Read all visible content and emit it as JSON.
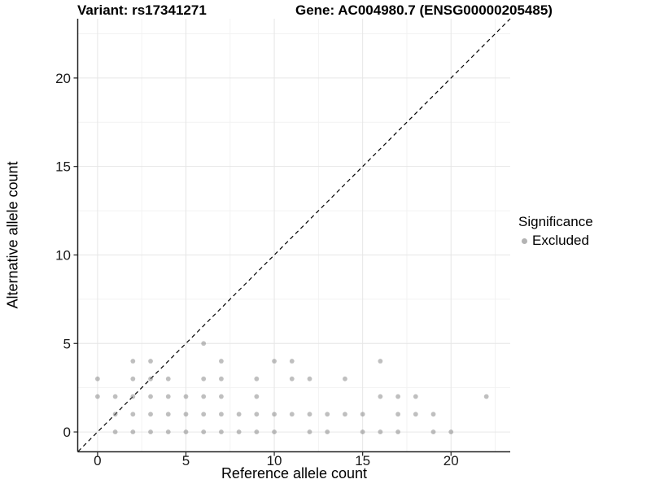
{
  "chart_data": {
    "type": "scatter",
    "titles": {
      "left": "Variant: rs17341271",
      "right": "Gene: AC004980.7 (ENSG00000205485)"
    },
    "xlabel": "Reference allele count",
    "ylabel": "Alternative allele count",
    "xlim": [
      -1.1,
      23.35
    ],
    "ylim": [
      -1.1,
      23.35
    ],
    "x_ticks": [
      0,
      5,
      10,
      15,
      20
    ],
    "y_ticks": [
      0,
      5,
      10,
      15,
      20
    ],
    "minor_ticks": [
      2.5,
      7.5,
      12.5,
      17.5,
      22.5
    ],
    "grid": true,
    "identity_line": {
      "style": "dashed",
      "from_corner": "bottom-left",
      "to_corner": "top-right",
      "color": "#000000"
    },
    "legend": {
      "position": "right",
      "title": "Significance",
      "entries": [
        {
          "label": "Excluded",
          "color": "#b3b3b3"
        }
      ]
    },
    "style": {
      "grid_major": "#e6e6e6",
      "grid_minor": "#f2f2f2",
      "axis_line": "#222222",
      "tick_color": "#1a1a1a",
      "tick_font_px": 17
    },
    "series": [
      {
        "name": "Excluded",
        "color": "#7f7f7f",
        "opacity": 0.5,
        "points": [
          [
            1,
            0
          ],
          [
            2,
            0
          ],
          [
            3,
            0
          ],
          [
            4,
            0
          ],
          [
            5,
            0
          ],
          [
            6,
            0
          ],
          [
            7,
            0
          ],
          [
            8,
            0
          ],
          [
            9,
            0
          ],
          [
            10,
            0
          ],
          [
            12,
            0
          ],
          [
            13,
            0
          ],
          [
            15,
            0
          ],
          [
            16,
            0
          ],
          [
            17,
            0
          ],
          [
            19,
            0
          ],
          [
            20,
            0
          ],
          [
            1,
            1
          ],
          [
            2,
            1
          ],
          [
            3,
            1
          ],
          [
            4,
            1
          ],
          [
            5,
            1
          ],
          [
            6,
            1
          ],
          [
            7,
            1
          ],
          [
            8,
            1
          ],
          [
            9,
            1
          ],
          [
            10,
            1
          ],
          [
            11,
            1
          ],
          [
            12,
            1
          ],
          [
            13,
            1
          ],
          [
            14,
            1
          ],
          [
            15,
            1
          ],
          [
            17,
            1
          ],
          [
            18,
            1
          ],
          [
            19,
            1
          ],
          [
            0,
            2
          ],
          [
            1,
            2
          ],
          [
            2,
            2
          ],
          [
            3,
            2
          ],
          [
            4,
            2
          ],
          [
            5,
            2
          ],
          [
            6,
            2
          ],
          [
            7,
            2
          ],
          [
            9,
            2
          ],
          [
            16,
            2
          ],
          [
            17,
            2
          ],
          [
            18,
            2
          ],
          [
            22,
            2
          ],
          [
            0,
            3
          ],
          [
            2,
            3
          ],
          [
            3,
            3
          ],
          [
            4,
            3
          ],
          [
            6,
            3
          ],
          [
            7,
            3
          ],
          [
            9,
            3
          ],
          [
            11,
            3
          ],
          [
            12,
            3
          ],
          [
            14,
            3
          ],
          [
            2,
            4
          ],
          [
            3,
            4
          ],
          [
            7,
            4
          ],
          [
            10,
            4
          ],
          [
            11,
            4
          ],
          [
            16,
            4
          ],
          [
            6,
            5
          ]
        ]
      }
    ]
  }
}
